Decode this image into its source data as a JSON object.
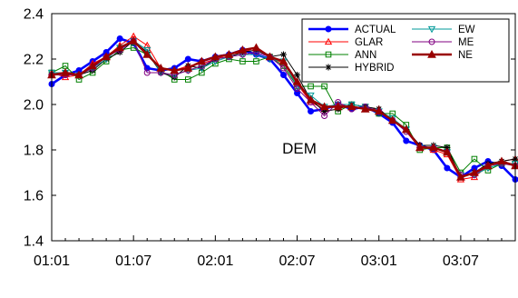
{
  "chart_data": {
    "type": "line",
    "title": "",
    "xlabel": "",
    "ylabel": "",
    "annotation": "DEM",
    "x_tick_labels": [
      "01:01",
      "01:07",
      "02:01",
      "02:07",
      "03:01",
      "03:07"
    ],
    "x_tick_index": [
      0,
      6,
      12,
      18,
      24,
      30
    ],
    "n_points": 35,
    "ylim": [
      1.4,
      2.4
    ],
    "y_ticks": [
      1.4,
      1.6,
      1.8,
      2.0,
      2.2,
      2.4
    ],
    "y_tick_labels": [
      "1.4",
      "1.6",
      "1.8",
      "2.0",
      "2.2",
      "2.4"
    ],
    "grid": false,
    "legend_position": "top-right",
    "series": [
      {
        "name": "ACTUAL",
        "color": "#0000ff",
        "marker": "circle",
        "values": [
          2.09,
          2.13,
          2.15,
          2.19,
          2.23,
          2.29,
          2.27,
          2.16,
          2.15,
          2.16,
          2.2,
          2.19,
          2.21,
          2.22,
          2.24,
          2.22,
          2.2,
          2.13,
          2.05,
          1.97,
          1.98,
          2.0,
          1.98,
          1.99,
          1.96,
          1.92,
          1.84,
          1.82,
          1.8,
          1.72,
          1.68,
          1.72,
          1.75,
          1.73,
          1.67
        ]
      },
      {
        "name": "GLAR",
        "color": "#ff0000",
        "marker": "triangle",
        "values": [
          2.14,
          2.12,
          2.13,
          2.18,
          2.21,
          2.26,
          2.3,
          2.26,
          2.16,
          2.15,
          2.17,
          2.18,
          2.2,
          2.22,
          2.23,
          2.25,
          2.21,
          2.18,
          2.09,
          2.01,
          1.98,
          2.0,
          1.99,
          1.98,
          1.98,
          1.93,
          1.89,
          1.82,
          1.8,
          1.78,
          1.67,
          1.68,
          1.73,
          1.75,
          1.76
        ]
      },
      {
        "name": "ANN",
        "color": "#008000",
        "marker": "square",
        "values": [
          2.14,
          2.17,
          2.11,
          2.14,
          2.19,
          2.24,
          2.25,
          2.22,
          2.15,
          2.11,
          2.11,
          2.14,
          2.18,
          2.2,
          2.19,
          2.19,
          2.21,
          2.17,
          2.08,
          2.08,
          2.08,
          1.97,
          2.0,
          1.99,
          1.96,
          1.96,
          1.91,
          1.8,
          1.81,
          1.81,
          1.7,
          1.76,
          1.71,
          1.74,
          1.74
        ]
      },
      {
        "name": "HYBRID",
        "color": "#000000",
        "marker": "asterisk",
        "values": [
          2.13,
          2.14,
          2.13,
          2.15,
          2.2,
          2.23,
          2.28,
          2.23,
          2.14,
          2.12,
          2.17,
          2.16,
          2.2,
          2.21,
          2.23,
          2.24,
          2.21,
          2.22,
          2.13,
          2.02,
          1.97,
          1.98,
          2.0,
          1.99,
          1.98,
          1.93,
          1.89,
          1.82,
          1.82,
          1.81,
          1.68,
          1.7,
          1.74,
          1.75,
          1.76
        ]
      },
      {
        "name": "EW",
        "color": "#009999",
        "marker": "triangle-down",
        "values": [
          2.14,
          2.14,
          2.13,
          2.16,
          2.2,
          2.25,
          2.28,
          2.24,
          2.14,
          2.13,
          2.15,
          2.16,
          2.19,
          2.21,
          2.22,
          2.22,
          2.2,
          2.19,
          2.08,
          2.04,
          1.99,
          2.0,
          2.0,
          1.99,
          1.97,
          1.94,
          1.89,
          1.81,
          1.81,
          1.79,
          1.69,
          1.69,
          1.72,
          1.74,
          1.74
        ]
      },
      {
        "name": "ME",
        "color": "#800080",
        "marker": "circle-open",
        "values": [
          2.13,
          2.13,
          2.13,
          2.16,
          2.21,
          2.24,
          2.28,
          2.14,
          2.14,
          2.13,
          2.15,
          2.17,
          2.2,
          2.21,
          2.22,
          2.23,
          2.21,
          2.16,
          2.07,
          2.01,
          1.95,
          2.01,
          1.98,
          1.99,
          1.97,
          1.93,
          1.88,
          1.81,
          1.81,
          1.79,
          1.69,
          1.69,
          1.73,
          1.74,
          1.73
        ]
      },
      {
        "name": "NE",
        "color": "#990000",
        "marker": "triangle-filled",
        "values": [
          2.13,
          2.14,
          2.13,
          2.17,
          2.21,
          2.25,
          2.28,
          2.22,
          2.16,
          2.15,
          2.16,
          2.19,
          2.21,
          2.22,
          2.24,
          2.25,
          2.21,
          2.19,
          2.1,
          2.02,
          1.99,
          1.99,
          1.99,
          1.98,
          1.97,
          1.93,
          1.89,
          1.81,
          1.81,
          1.79,
          1.68,
          1.7,
          1.73,
          1.75,
          1.73
        ]
      }
    ]
  }
}
